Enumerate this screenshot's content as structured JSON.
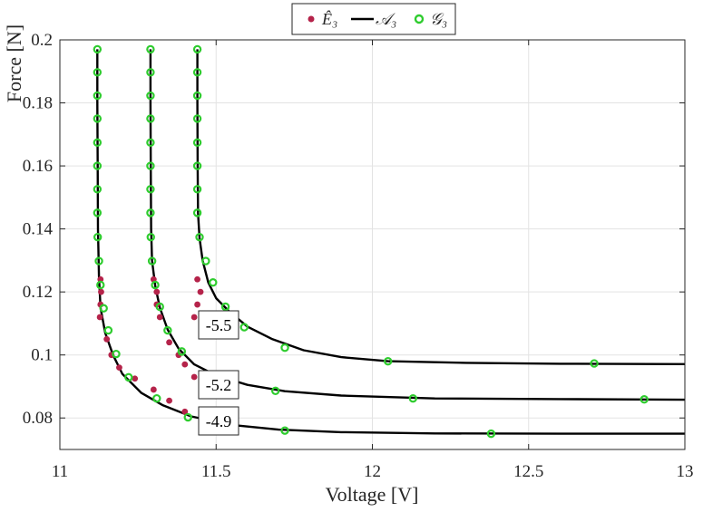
{
  "chart_data": {
    "type": "line",
    "xlabel": "Voltage [V]",
    "ylabel": "Force [N]",
    "xlim": [
      11,
      13
    ],
    "ylim": [
      0.07,
      0.2
    ],
    "xticks": [
      "11",
      "11.5",
      "12",
      "12.5",
      "13"
    ],
    "yticks": [
      "0.08",
      "0.1",
      "0.12",
      "0.14",
      "0.16",
      "0.18",
      "0.2"
    ],
    "grid": true,
    "legend_position": "top-center",
    "legend": [
      {
        "label": "Ê₃",
        "marker": "dot",
        "color": "#b5234a"
      },
      {
        "label": "𝒜₃",
        "marker": "line",
        "color": "#000000"
      },
      {
        "label": "𝒢₃",
        "marker": "ring",
        "color": "#2ecc2e"
      }
    ],
    "colors": {
      "e_hat": "#b5234a",
      "a": "#000000",
      "g": "#2ecc2e",
      "grid": "#e3e3e3"
    },
    "annotations": [
      "-4.9",
      "-5.2",
      "-5.5"
    ],
    "series": [
      {
        "annotation": "-4.9",
        "A_line": [
          [
            11.12,
            0.197
          ],
          [
            11.12,
            0.18
          ],
          [
            11.121,
            0.16
          ],
          [
            11.122,
            0.14
          ],
          [
            11.125,
            0.125
          ],
          [
            11.13,
            0.115
          ],
          [
            11.145,
            0.107
          ],
          [
            11.17,
            0.1
          ],
          [
            11.2,
            0.094
          ],
          [
            11.26,
            0.088
          ],
          [
            11.33,
            0.084
          ],
          [
            11.42,
            0.0805
          ],
          [
            11.55,
            0.0778
          ],
          [
            11.7,
            0.0763
          ],
          [
            11.9,
            0.0755
          ],
          [
            12.2,
            0.0751
          ],
          [
            12.6,
            0.075
          ],
          [
            13,
            0.075
          ]
        ],
        "G_points": [
          [
            11.12,
            0.197
          ],
          [
            11.12,
            0.1897
          ],
          [
            11.12,
            0.1823
          ],
          [
            11.12,
            0.175
          ],
          [
            11.12,
            0.1674
          ],
          [
            11.12,
            0.16
          ],
          [
            11.12,
            0.1526
          ],
          [
            11.12,
            0.1451
          ],
          [
            11.121,
            0.1374
          ],
          [
            11.125,
            0.1298
          ],
          [
            11.13,
            0.1222
          ],
          [
            11.14,
            0.1148
          ],
          [
            11.155,
            0.1078
          ],
          [
            11.18,
            0.1003
          ],
          [
            11.22,
            0.0929
          ],
          [
            11.31,
            0.0862
          ],
          [
            11.41,
            0.0802
          ],
          [
            11.72,
            0.076
          ],
          [
            12.38,
            0.075
          ]
        ],
        "E_hat_points": [
          [
            11.13,
            0.124
          ],
          [
            11.132,
            0.12
          ],
          [
            11.13,
            0.116
          ],
          [
            11.128,
            0.112
          ],
          [
            11.15,
            0.105
          ],
          [
            11.165,
            0.1
          ],
          [
            11.19,
            0.096
          ],
          [
            11.24,
            0.0925
          ],
          [
            11.35,
            0.0855
          ]
        ]
      },
      {
        "annotation": "-5.2",
        "A_line": [
          [
            11.29,
            0.197
          ],
          [
            11.29,
            0.18
          ],
          [
            11.291,
            0.16
          ],
          [
            11.292,
            0.14
          ],
          [
            11.295,
            0.13
          ],
          [
            11.305,
            0.122
          ],
          [
            11.32,
            0.115
          ],
          [
            11.345,
            0.108
          ],
          [
            11.38,
            0.102
          ],
          [
            11.43,
            0.097
          ],
          [
            11.5,
            0.0935
          ],
          [
            11.6,
            0.0905
          ],
          [
            11.72,
            0.0885
          ],
          [
            11.9,
            0.0871
          ],
          [
            12.2,
            0.0862
          ],
          [
            12.6,
            0.086
          ],
          [
            13,
            0.0858
          ]
        ],
        "G_points": [
          [
            11.29,
            0.197
          ],
          [
            11.29,
            0.1897
          ],
          [
            11.29,
            0.1823
          ],
          [
            11.29,
            0.175
          ],
          [
            11.29,
            0.1674
          ],
          [
            11.29,
            0.16
          ],
          [
            11.29,
            0.1526
          ],
          [
            11.29,
            0.1451
          ],
          [
            11.291,
            0.1374
          ],
          [
            11.295,
            0.1298
          ],
          [
            11.305,
            0.1222
          ],
          [
            11.32,
            0.1153
          ],
          [
            11.345,
            0.1078
          ],
          [
            11.39,
            0.1011
          ],
          [
            11.69,
            0.0886
          ],
          [
            12.13,
            0.0862
          ],
          [
            12.87,
            0.0859
          ]
        ],
        "E_hat_points": [
          [
            11.3,
            0.124
          ],
          [
            11.31,
            0.12
          ],
          [
            11.31,
            0.116
          ],
          [
            11.32,
            0.112
          ],
          [
            11.35,
            0.104
          ],
          [
            11.38,
            0.1
          ],
          [
            11.4,
            0.097
          ],
          [
            11.43,
            0.093
          ],
          [
            11.3,
            0.089
          ],
          [
            11.4,
            0.082
          ]
        ]
      },
      {
        "annotation": "-5.5",
        "A_line": [
          [
            11.44,
            0.197
          ],
          [
            11.44,
            0.18
          ],
          [
            11.441,
            0.16
          ],
          [
            11.442,
            0.145
          ],
          [
            11.447,
            0.137
          ],
          [
            11.457,
            0.13
          ],
          [
            11.475,
            0.123
          ],
          [
            11.5,
            0.118
          ],
          [
            11.54,
            0.114
          ],
          [
            11.6,
            0.109
          ],
          [
            11.68,
            0.105
          ],
          [
            11.78,
            0.1015
          ],
          [
            11.9,
            0.0993
          ],
          [
            12.05,
            0.098
          ],
          [
            12.3,
            0.0975
          ],
          [
            12.6,
            0.0972
          ],
          [
            13,
            0.0971
          ]
        ],
        "G_points": [
          [
            11.44,
            0.197
          ],
          [
            11.44,
            0.1897
          ],
          [
            11.44,
            0.1823
          ],
          [
            11.44,
            0.175
          ],
          [
            11.44,
            0.1674
          ],
          [
            11.44,
            0.16
          ],
          [
            11.44,
            0.1526
          ],
          [
            11.44,
            0.1451
          ],
          [
            11.447,
            0.1374
          ],
          [
            11.467,
            0.1298
          ],
          [
            11.49,
            0.123
          ],
          [
            11.53,
            0.1153
          ],
          [
            11.59,
            0.1088
          ],
          [
            11.72,
            0.1023
          ],
          [
            12.05,
            0.098
          ],
          [
            12.71,
            0.0973
          ]
        ],
        "E_hat_points": [
          [
            11.44,
            0.124
          ],
          [
            11.45,
            0.12
          ],
          [
            11.44,
            0.116
          ],
          [
            11.43,
            0.112
          ]
        ]
      }
    ]
  }
}
